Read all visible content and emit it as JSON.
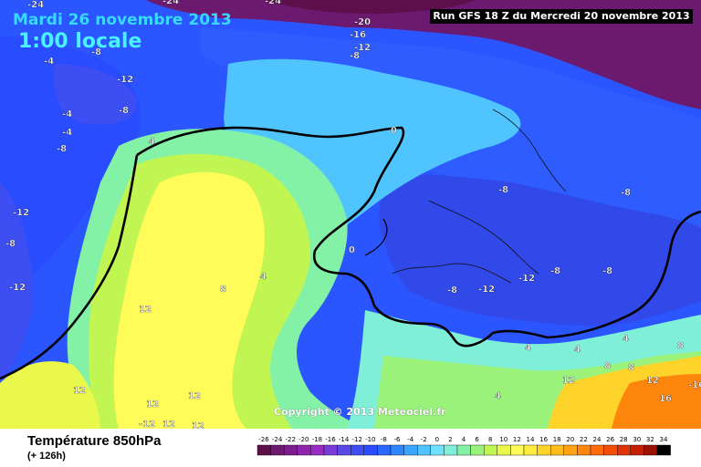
{
  "header": {
    "date": "Mardi 26 novembre 2013",
    "local_time": "1:00 locale",
    "run": "Run GFS 18 Z du Mercredi 20 novembre 2013"
  },
  "footer": {
    "parameter": "Température 850hPa",
    "lead_time": "(+ 126h)",
    "copyright": "Copyright © 2013 Meteociel.fr"
  },
  "legend": {
    "values": [
      "-26",
      "-24",
      "-22",
      "-20",
      "-18",
      "-16",
      "-14",
      "-12",
      "-10",
      "-8",
      "-6",
      "-4",
      "-2",
      "0",
      "2",
      "4",
      "6",
      "8",
      "10",
      "12",
      "14",
      "16",
      "18",
      "20",
      "22",
      "24",
      "26",
      "28",
      "30",
      "32",
      "34"
    ],
    "colors": [
      "#5c0f4a",
      "#6b1a6f",
      "#7c1d8e",
      "#8e24aa",
      "#9a2cc6",
      "#7a3bd9",
      "#5a49e6",
      "#3d4ef2",
      "#2a4cff",
      "#2b66ff",
      "#2e86ff",
      "#3aa7ff",
      "#4fc4ff",
      "#6ee1ff",
      "#7ff0d7",
      "#84f2a6",
      "#9af27a",
      "#c1f552",
      "#e9f84a",
      "#fffb58",
      "#ffec3c",
      "#ffd42a",
      "#ffbd1c",
      "#ffa214",
      "#ff860d",
      "#ff6a0a",
      "#f24d07",
      "#dd3306",
      "#c51d06",
      "#9b1004",
      "#000000"
    ]
  },
  "map_labels": [
    {
      "text": "-24"
    },
    {
      "text": "-20"
    },
    {
      "text": "-16"
    },
    {
      "text": "-12"
    },
    {
      "text": "-8"
    },
    {
      "text": "-4"
    },
    {
      "text": "-8"
    },
    {
      "text": "-12"
    },
    {
      "text": "-8"
    },
    {
      "text": "-12"
    },
    {
      "text": "-8"
    },
    {
      "text": "-4"
    },
    {
      "text": "-4"
    },
    {
      "text": "4"
    },
    {
      "text": "0"
    },
    {
      "text": "4"
    },
    {
      "text": "-12"
    },
    {
      "text": "-8"
    },
    {
      "text": "-8"
    },
    {
      "text": "-8"
    },
    {
      "text": "-12"
    },
    {
      "text": "-8"
    },
    {
      "text": "-12"
    },
    {
      "text": "-8"
    },
    {
      "text": "-8"
    },
    {
      "text": "0"
    },
    {
      "text": "4"
    },
    {
      "text": "8"
    },
    {
      "text": "12"
    },
    {
      "text": "12"
    },
    {
      "text": "12"
    },
    {
      "text": "12"
    },
    {
      "text": "-12"
    },
    {
      "text": "12"
    },
    {
      "text": "12"
    },
    {
      "text": "4"
    },
    {
      "text": "4"
    },
    {
      "text": "4"
    },
    {
      "text": "8"
    },
    {
      "text": "8"
    },
    {
      "text": "12"
    },
    {
      "text": "16"
    },
    {
      "text": "-16"
    },
    {
      "text": "12"
    },
    {
      "text": "8"
    },
    {
      "text": "-24"
    },
    {
      "text": "-24"
    }
  ]
}
